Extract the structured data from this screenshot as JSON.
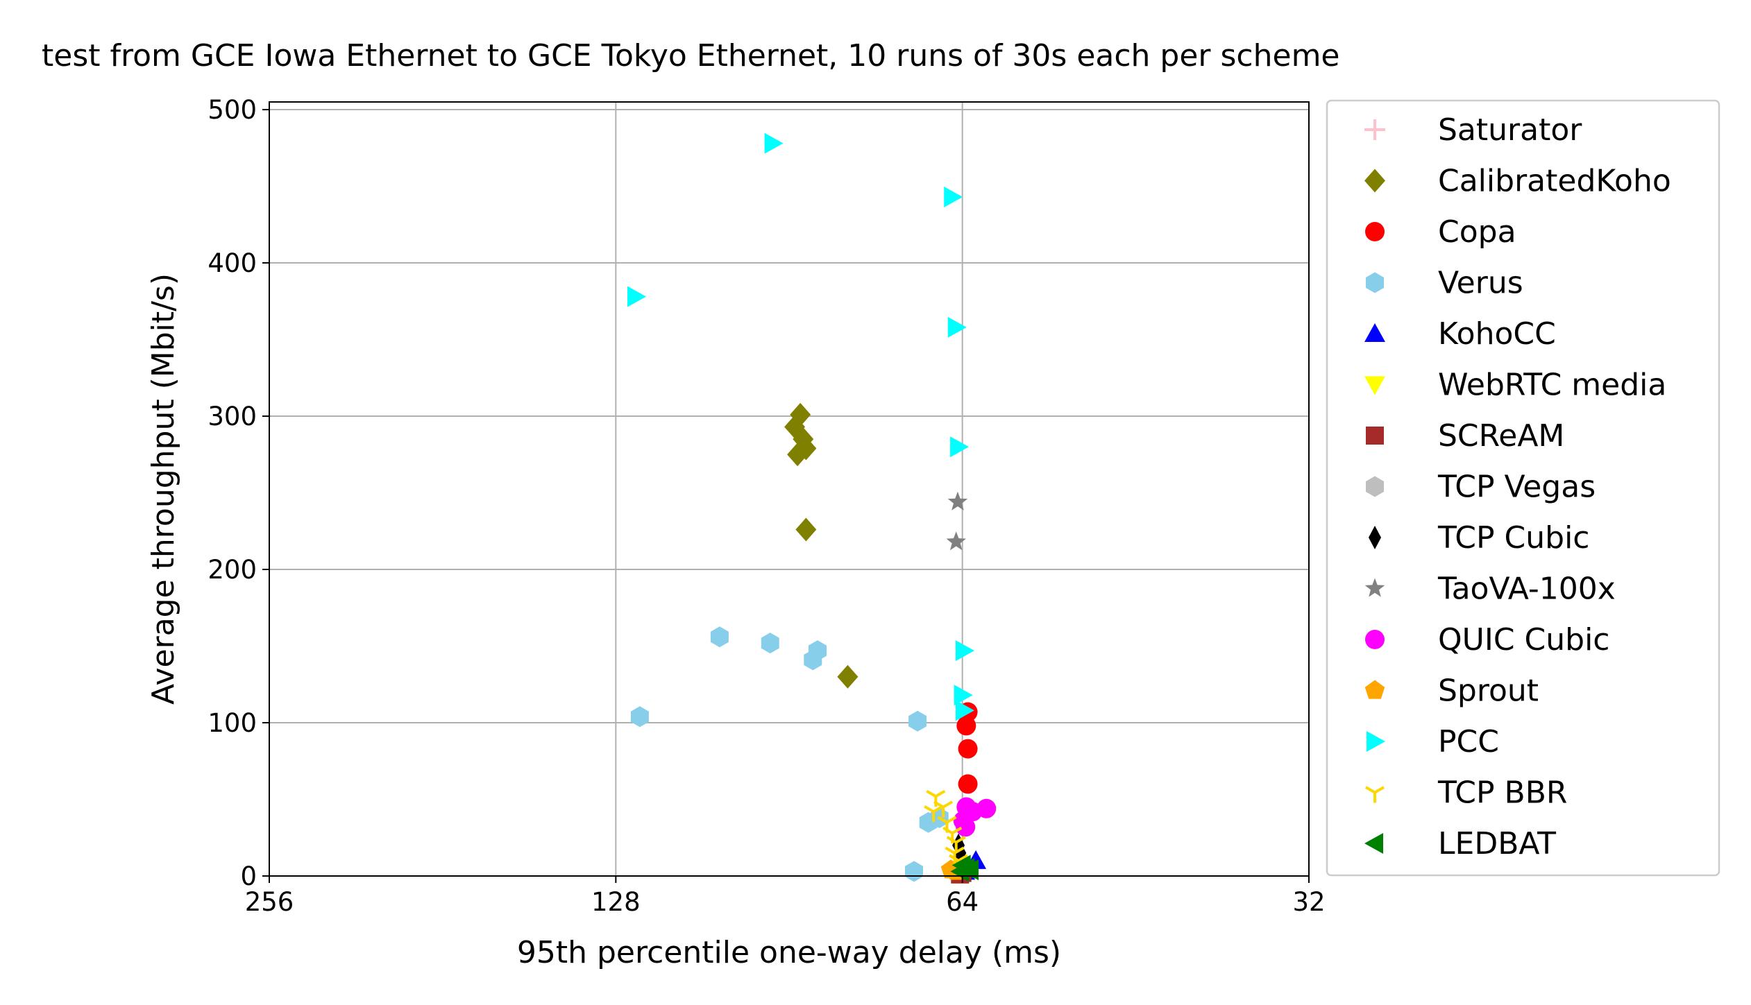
{
  "chart_data": {
    "type": "scatter",
    "title": "test from GCE Iowa Ethernet to GCE Tokyo Ethernet, 10 runs of 30s each per scheme",
    "xlabel": "95th percentile one-way delay (ms)",
    "ylabel": "Average throughput (Mbit/s)",
    "x_scale": "log2",
    "x_inverted": true,
    "xlim": [
      256,
      32
    ],
    "ylim": [
      0,
      505
    ],
    "x_ticks": [
      256,
      128,
      64,
      32
    ],
    "x_tick_labels": [
      "256",
      "128",
      "64",
      "32"
    ],
    "y_ticks": [
      0,
      100,
      200,
      300,
      400,
      500
    ],
    "y_tick_labels": [
      "0",
      "100",
      "200",
      "300",
      "400",
      "500"
    ],
    "grid": true,
    "legend_position": "outside-right",
    "series": [
      {
        "name": "Saturator",
        "marker": "plus",
        "color": "#ffc0cb",
        "points": []
      },
      {
        "name": "CalibratedKoho",
        "marker": "diamond",
        "color": "#808000",
        "points": [
          [
            88.5,
            301
          ],
          [
            89.5,
            293
          ],
          [
            88.0,
            285
          ],
          [
            87.5,
            279
          ],
          [
            89.0,
            275
          ],
          [
            87.5,
            226
          ],
          [
            80.5,
            130
          ]
        ]
      },
      {
        "name": "Copa",
        "marker": "circle",
        "color": "#ff0000",
        "points": [
          [
            63.3,
            107
          ],
          [
            63.5,
            98
          ],
          [
            63.3,
            83
          ],
          [
            63.3,
            60
          ],
          [
            63.5,
            5
          ]
        ]
      },
      {
        "name": "Verus",
        "marker": "hexagon",
        "color": "#87ceeb",
        "points": [
          [
            122,
            104
          ],
          [
            104,
            156
          ],
          [
            94,
            152
          ],
          [
            85.5,
            147
          ],
          [
            86.3,
            141
          ],
          [
            70,
            101
          ],
          [
            70.5,
            3
          ],
          [
            68.5,
            35
          ],
          [
            67,
            38
          ]
        ]
      },
      {
        "name": "KohoCC",
        "marker": "triangle-up",
        "color": "#0000ff",
        "points": [
          [
            62.3,
            10
          ],
          [
            63.7,
            3
          ]
        ]
      },
      {
        "name": "WebRTC media",
        "marker": "triangle-down",
        "color": "#ffff00",
        "points": []
      },
      {
        "name": "SCReAM",
        "marker": "square",
        "color": "#a52a2a",
        "points": [
          [
            64.0,
            2
          ],
          [
            64.3,
            1
          ]
        ]
      },
      {
        "name": "TCP Vegas",
        "marker": "hexagon",
        "color": "#bebebe",
        "points": [
          [
            64.0,
            6
          ]
        ]
      },
      {
        "name": "TCP Cubic",
        "marker": "thin-diamond",
        "color": "#000000",
        "points": [
          [
            64.5,
            20
          ],
          [
            64.3,
            15
          ]
        ]
      },
      {
        "name": "TaoVA-100x",
        "marker": "star",
        "color": "#808080",
        "points": [
          [
            64.6,
            244
          ],
          [
            64.8,
            218
          ]
        ]
      },
      {
        "name": "QUIC Cubic",
        "marker": "circle",
        "color": "#ff00ff",
        "points": [
          [
            63.5,
            45
          ],
          [
            62.7,
            42
          ],
          [
            61.0,
            44
          ],
          [
            63.9,
            36
          ],
          [
            63.6,
            32
          ]
        ]
      },
      {
        "name": "Sprout",
        "marker": "pentagon",
        "color": "#ffa500",
        "points": [
          [
            65.5,
            4
          ],
          [
            64.8,
            3
          ]
        ]
      },
      {
        "name": "PCC",
        "marker": "triangle-right",
        "color": "#00ffff",
        "points": [
          [
            93.5,
            478
          ],
          [
            65.3,
            443
          ],
          [
            123,
            378
          ],
          [
            64.8,
            358
          ],
          [
            64.5,
            280
          ],
          [
            63.8,
            147
          ],
          [
            64.0,
            118
          ],
          [
            63.8,
            108
          ]
        ]
      },
      {
        "name": "TCP BBR",
        "marker": "tri-down",
        "color": "#ffd700",
        "points": [
          [
            67.5,
            52
          ],
          [
            66.5,
            45
          ],
          [
            67.8,
            42
          ],
          [
            66.0,
            35
          ],
          [
            65.3,
            28
          ],
          [
            64.8,
            22
          ],
          [
            65.0,
            15
          ],
          [
            64.5,
            10
          ]
        ]
      },
      {
        "name": "LEDBAT",
        "marker": "triangle-left",
        "color": "#008000",
        "points": [
          [
            64.0,
            7
          ],
          [
            63.5,
            5
          ],
          [
            64.2,
            3
          ],
          [
            63.0,
            4
          ]
        ]
      }
    ]
  }
}
